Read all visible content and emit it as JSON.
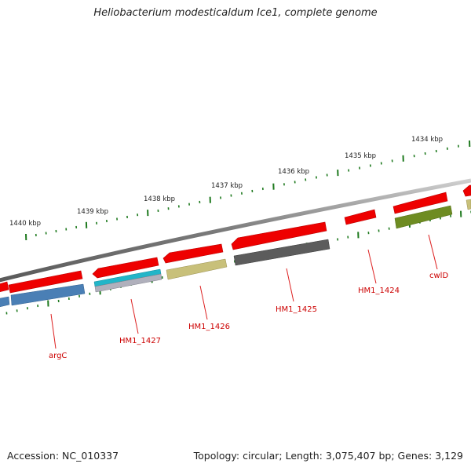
{
  "title": "Heliobacterium modesticaldum Ice1, complete genome",
  "footer": {
    "accession_label": "Accession:",
    "accession": "NC_010337",
    "topology_text": "Topology: circular; Length: 3,075,407 bp; Genes: 3,129"
  },
  "scale_labels": [
    "1440 kbp",
    "1439 kbp",
    "1438 kbp",
    "1437 kbp",
    "1436 kbp",
    "1435 kbp",
    "1434 kbp"
  ],
  "gene_labels": [
    "argC",
    "HM1_1427",
    "HM1_1426",
    "HM1_1425",
    "HM1_1424",
    "cwlD"
  ],
  "colors": {
    "gene_red": "#ee0000",
    "label_red": "#cc0000",
    "tick_green": "#1f7a1f",
    "backbone_gray": "#888888",
    "cog_blue": "#4a7fb5",
    "cog_cyan": "#22b5c8",
    "cog_lightgray": "#b0b0bc",
    "cog_khaki": "#c8c07a",
    "cog_darkgray": "#5c5c5c",
    "cog_olive": "#6e8c22"
  }
}
